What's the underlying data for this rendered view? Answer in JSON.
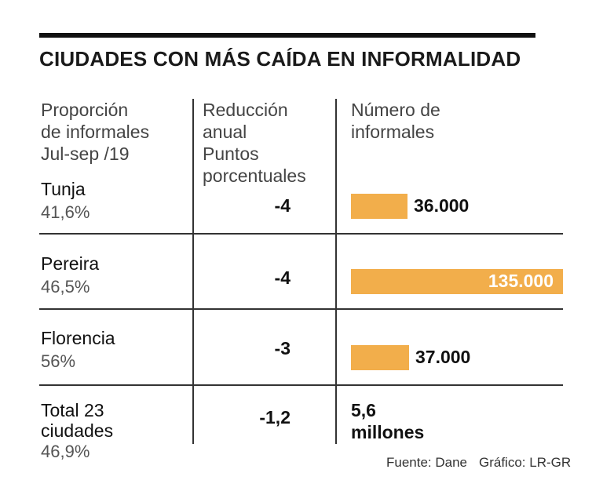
{
  "title": "CIUDADES CON MÁS CAÍDA EN INFORMALIDAD",
  "headers": {
    "col1": "Proporción\nde informales\nJul-sep /19",
    "col2": "Reducción\nanual\nPuntos\nporcentuales",
    "col3": "Número de\ninformales"
  },
  "chart_data": {
    "type": "bar",
    "title": "CIUDADES CON MÁS CAÍDA EN INFORMALIDAD",
    "categories": [
      "Tunja",
      "Pereira",
      "Florencia"
    ],
    "proportion_labels": [
      "41,6%",
      "46,5%",
      "56%"
    ],
    "reduction_labels": [
      "-4",
      "-4",
      "-3"
    ],
    "values": [
      36000,
      135000,
      37000
    ],
    "value_labels": [
      "36.000",
      "135.000",
      "37.000"
    ],
    "xlabel": "Número de informales",
    "ylabel": "",
    "xlim": [
      0,
      135000
    ]
  },
  "total": {
    "label": "Total 23\nciudades",
    "proportion": "46,9%",
    "reduction": "-1,2",
    "informales": "5,6\nmillones"
  },
  "footer": {
    "source": "Fuente: Dane",
    "credit": "Gráfico: LR-GR"
  },
  "colors": {
    "bar": "#f2ae4b"
  }
}
